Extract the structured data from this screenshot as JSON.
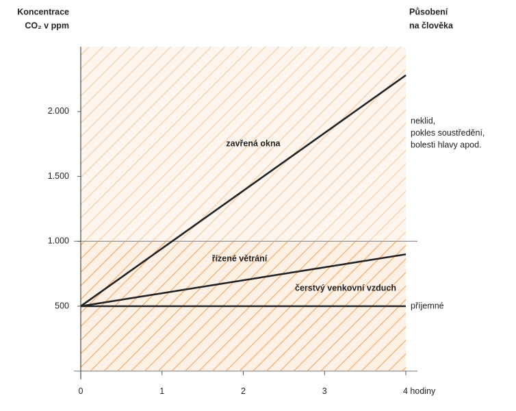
{
  "chart_data": {
    "type": "line",
    "y_title": [
      "Koncentrace",
      "CO₂ v ppm"
    ],
    "y2_title": [
      "Působení",
      "na člověka"
    ],
    "x": [
      0,
      4
    ],
    "series": [
      {
        "name": "zavřená okna",
        "color": "#222222",
        "values": [
          500,
          2280
        ]
      },
      {
        "name": "řízené větrání",
        "color": "#222222",
        "values": [
          500,
          900
        ]
      },
      {
        "name": "čerstvý venkovní vzduch",
        "color": "#222222",
        "values": [
          500,
          500
        ]
      }
    ],
    "xlim": [
      0,
      4
    ],
    "xticks": [
      0,
      1,
      2,
      3,
      {
        "value": 4,
        "label": "4 hodiny"
      }
    ],
    "ylim": [
      0,
      2500
    ],
    "yticks": [
      {
        "value": 500,
        "label": "500"
      },
      {
        "value": 1000,
        "label": "1.000"
      },
      {
        "value": 1500,
        "label": "1.500"
      },
      {
        "value": 2000,
        "label": "2.000"
      }
    ],
    "threshold": 1000,
    "zone_labels": [
      [
        "neklid,",
        "pokles soustředění,",
        "bolesti hlavy apod."
      ],
      [
        "příjemné"
      ]
    ]
  }
}
